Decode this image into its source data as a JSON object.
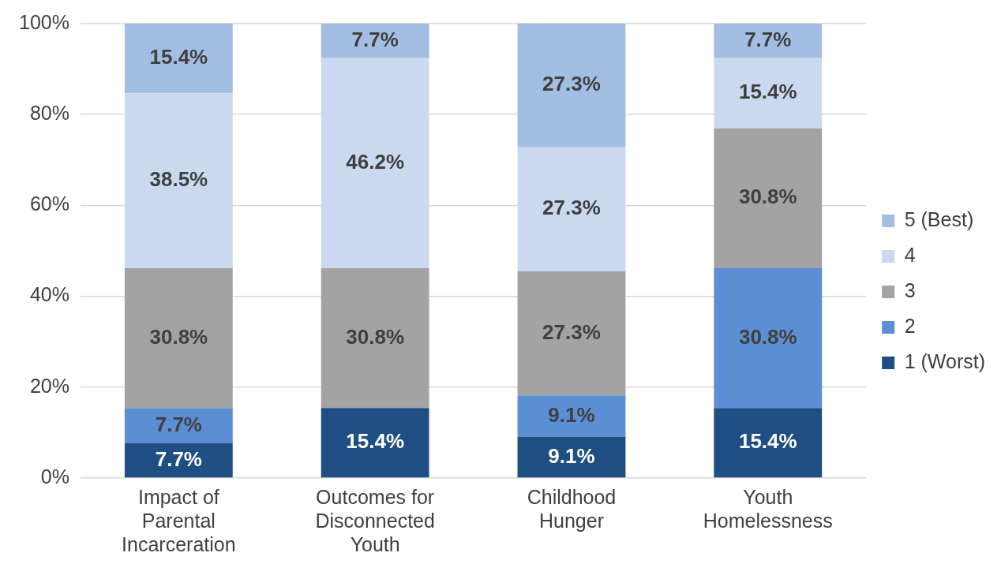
{
  "chart_data": {
    "type": "bar",
    "stacked": true,
    "categories": [
      "Impact of Parental Incarceration",
      "Outcomes for Disconnected Youth",
      "Childhood Hunger",
      "Youth Homelessness"
    ],
    "series": [
      {
        "name": "1 (Worst)",
        "color": "#1f4e82",
        "values": [
          7.7,
          15.4,
          9.1,
          15.4
        ],
        "value_labels": [
          "7.7%",
          "15.4%",
          "9.1%",
          "15.4%"
        ]
      },
      {
        "name": "2",
        "color": "#5b8ed2",
        "values": [
          7.7,
          null,
          9.1,
          30.8
        ],
        "value_labels": [
          "7.7%",
          null,
          "9.1%",
          "30.8%"
        ]
      },
      {
        "name": "3",
        "color": "#a3a3a3",
        "values": [
          30.8,
          30.8,
          27.3,
          30.8
        ],
        "value_labels": [
          "30.8%",
          "30.8%",
          "27.3%",
          "30.8%"
        ]
      },
      {
        "name": "4",
        "color": "#cad9ef",
        "values": [
          38.5,
          46.2,
          27.3,
          15.4
        ],
        "value_labels": [
          "38.5%",
          "46.2%",
          "27.3%",
          "15.4%"
        ]
      },
      {
        "name": "5 (Best)",
        "color": "#a2bfe3",
        "values": [
          15.4,
          7.7,
          27.3,
          7.7
        ],
        "value_labels": [
          "15.4%",
          "7.7%",
          "27.3%",
          "7.7%"
        ]
      }
    ],
    "ylim": [
      0,
      100
    ],
    "yticks": [
      {
        "value": 0,
        "label": "0%"
      },
      {
        "value": 20,
        "label": "20%"
      },
      {
        "value": 40,
        "label": "40%"
      },
      {
        "value": 60,
        "label": "60%"
      },
      {
        "value": 80,
        "label": "80%"
      },
      {
        "value": 100,
        "label": "100%"
      }
    ],
    "grid": "y",
    "legend": "right"
  }
}
